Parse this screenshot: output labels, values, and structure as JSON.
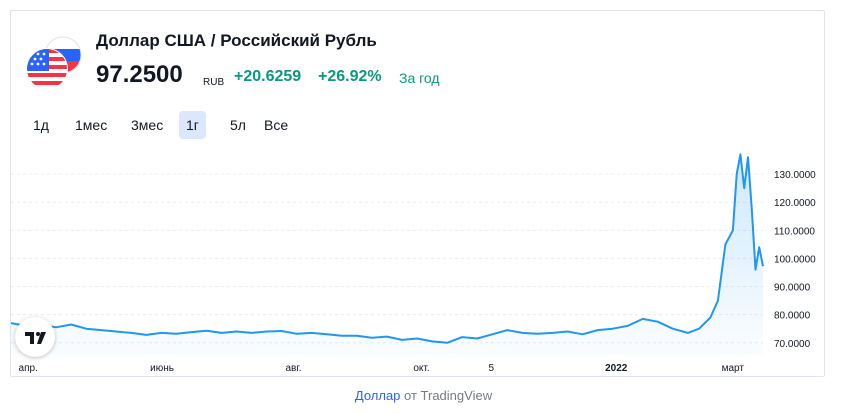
{
  "header": {
    "title": "Доллар США / Российский Рубль",
    "price": "97.2500",
    "currency": "RUB",
    "change": "+20.6259",
    "change_pct": "+26.92%",
    "period": "За год"
  },
  "ranges": [
    {
      "label": "1д",
      "active": false
    },
    {
      "label": "1мес",
      "active": false
    },
    {
      "label": "3мес",
      "active": false
    },
    {
      "label": "1г",
      "active": true
    },
    {
      "label": "5л",
      "active": false
    },
    {
      "label": "Все",
      "active": false
    }
  ],
  "footer": {
    "link_text": "Доллар",
    "suffix": " от TradingView"
  },
  "colors": {
    "line": "#2196f3",
    "positive": "#089981",
    "active_range_bg": "#dbe7fb",
    "link": "#2962ff"
  },
  "icons": {
    "flag": "us-ru-flag-icon",
    "logo": "tradingview-logo-icon"
  },
  "chart_data": {
    "type": "area",
    "title": "",
    "xlabel": "",
    "ylabel": "",
    "ylim": [
      66,
      140
    ],
    "y_ticks": [
      "70.0000",
      "80.0000",
      "90.0000",
      "100.0000",
      "110.0000",
      "120.0000",
      "130.0000"
    ],
    "x_ticks": [
      {
        "label": "апр.",
        "t": 0.01,
        "bold": false
      },
      {
        "label": "июнь",
        "t": 0.185,
        "bold": false
      },
      {
        "label": "авг.",
        "t": 0.365,
        "bold": false
      },
      {
        "label": "окт.",
        "t": 0.535,
        "bold": false
      },
      {
        "label": "5",
        "t": 0.635,
        "bold": false
      },
      {
        "label": "2022",
        "t": 0.79,
        "bold": true
      },
      {
        "label": "март",
        "t": 0.945,
        "bold": false
      }
    ],
    "grid": true,
    "series": [
      {
        "t": [
          0,
          0.02,
          0.04,
          0.06,
          0.08,
          0.1,
          0.12,
          0.14,
          0.16,
          0.18,
          0.2,
          0.22,
          0.24,
          0.26,
          0.28,
          0.3,
          0.32,
          0.34,
          0.36,
          0.38,
          0.4,
          0.42,
          0.44,
          0.46,
          0.48,
          0.5,
          0.52,
          0.54,
          0.56,
          0.58,
          0.6,
          0.62,
          0.64,
          0.66,
          0.68,
          0.7,
          0.72,
          0.74,
          0.76,
          0.78,
          0.8,
          0.82,
          0.84,
          0.86,
          0.88,
          0.9,
          0.915,
          0.93,
          0.94,
          0.95,
          0.96,
          0.965,
          0.97,
          0.975,
          0.98,
          0.985,
          0.99,
          0.995,
          1.0
        ],
        "values": [
          77.0,
          76.0,
          76.5,
          75.5,
          76.5,
          75.0,
          74.5,
          74.0,
          73.5,
          72.8,
          73.5,
          73.2,
          73.8,
          74.3,
          73.5,
          74.0,
          73.5,
          74.0,
          74.2,
          73.2,
          73.5,
          73.0,
          72.5,
          72.5,
          71.8,
          72.2,
          71.0,
          71.5,
          70.5,
          70.0,
          72.0,
          71.5,
          73.0,
          74.5,
          73.5,
          73.2,
          73.5,
          74.0,
          73.0,
          74.5,
          75.0,
          76.0,
          78.5,
          77.5,
          75.0,
          73.5,
          75.0,
          79.0,
          85.0,
          105.0,
          110.0,
          130.0,
          137.0,
          125.0,
          136.0,
          118.0,
          96.0,
          104.0,
          97.25
        ]
      }
    ]
  }
}
